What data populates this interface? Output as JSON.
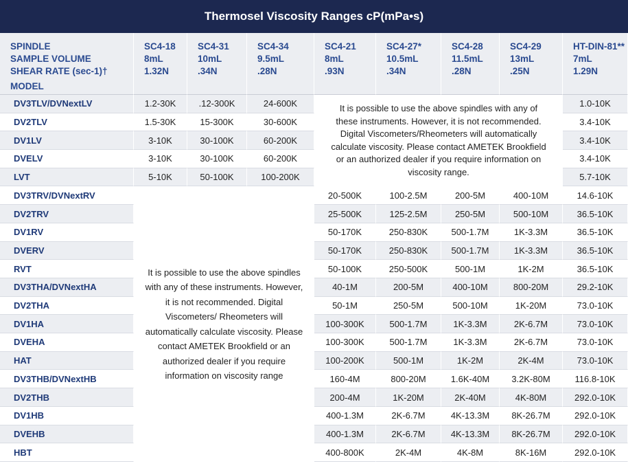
{
  "title": "Thermosel Viscosity Ranges cP(mPa•s)",
  "table": {
    "header": [
      [
        "SPINDLE",
        "SAMPLE VOLUME",
        "SHEAR RATE (sec-1)†",
        "MODEL"
      ],
      [
        "SC4-18",
        "8mL",
        "1.32N"
      ],
      [
        "SC4-31",
        "10mL",
        ".34N"
      ],
      [
        "SC4-34",
        "9.5mL",
        ".28N"
      ],
      [
        "SC4-21",
        "8mL",
        ".93N"
      ],
      [
        "SC4-27*",
        "10.5mL",
        ".34N"
      ],
      [
        "SC4-28",
        "11.5mL",
        ".28N"
      ],
      [
        "SC4-29",
        "13mL",
        ".25N"
      ],
      [
        "HT-DIN-81**",
        "7mL",
        "1.29N"
      ]
    ],
    "rows": [
      [
        "DV3TLV/DVNextLV",
        "1.2-30K",
        ".12-300K",
        "24-600K",
        "1.0-10K"
      ],
      [
        "DV2TLV",
        "1.5-30K",
        "15-300K",
        "30-600K",
        "3.4-10K"
      ],
      [
        "DV1LV",
        "3-10K",
        "30-100K",
        "60-200K",
        "3.4-10K"
      ],
      [
        "DVELV",
        "3-10K",
        "30-100K",
        "60-200K",
        "3.4-10K"
      ],
      [
        "LVT",
        "5-10K",
        "50-100K",
        "100-200K",
        "5.7-10K"
      ],
      [
        "DV3TRV/DVNextRV",
        "20-500K",
        "100-2.5M",
        "200-5M",
        "400-10M",
        "14.6-10K"
      ],
      [
        "DV2TRV",
        "25-500K",
        "125-2.5M",
        "250-5M",
        "500-10M",
        "36.5-10K"
      ],
      [
        "DV1RV",
        "50-170K",
        "250-830K",
        "500-1.7M",
        "1K-3.3M",
        "36.5-10K"
      ],
      [
        "DVERV",
        "50-170K",
        "250-830K",
        "500-1.7M",
        "1K-3.3M",
        "36.5-10K"
      ],
      [
        "RVT",
        "50-100K",
        "250-500K",
        "500-1M",
        "1K-2M",
        "36.5-10K"
      ],
      [
        "DV3THA/DVNextHA",
        "40-1M",
        "200-5M",
        "400-10M",
        "800-20M",
        "29.2-10K"
      ],
      [
        "DV2THA",
        "50-1M",
        "250-5M",
        "500-10M",
        "1K-20M",
        "73.0-10K"
      ],
      [
        "DV1HA",
        "100-300K",
        "500-1.7M",
        "1K-3.3M",
        "2K-6.7M",
        "73.0-10K"
      ],
      [
        "DVEHA",
        "100-300K",
        "500-1.7M",
        "1K-3.3M",
        "2K-6.7M",
        "73.0-10K"
      ],
      [
        "HAT",
        "100-200K",
        "500-1M",
        "1K-2M",
        "2K-4M",
        "73.0-10K"
      ],
      [
        "DV3THB/DVNextHB",
        "160-4M",
        "800-20M",
        "1.6K-40M",
        "3.2K-80M",
        "116.8-10K"
      ],
      [
        "DV2THB",
        "200-4M",
        "1K-20M",
        "2K-40M",
        "4K-80M",
        "292.0-10K"
      ],
      [
        "DV1HB",
        "400-1.3M",
        "2K-6.7M",
        "4K-13.3M",
        "8K-26.7M",
        "292.0-10K"
      ],
      [
        "DVEHB",
        "400-1.3M",
        "2K-6.7M",
        "4K-13.3M",
        "8K-26.7M",
        "292.0-10K"
      ],
      [
        "HBT",
        "400-800K",
        "2K-4M",
        "4K-8M",
        "8K-16M",
        "292.0-10K"
      ]
    ],
    "notes": [
      "It is possible to use the above spindles with any of these instruments. However, it is not recommended. Digital Viscometers/Rheometers will automatically calculate viscosity. Please contact AMETEK Brookfield or an authorized dealer if you require information on viscosity range.",
      "It is possible to use the above spindles with any of these instruments. However, it is not recommended. Digital Viscometers/ Rheometers will automatically calculate viscosity. Please contact AMETEK Brookfield or an authorized dealer if you require information on viscosity range"
    ]
  }
}
